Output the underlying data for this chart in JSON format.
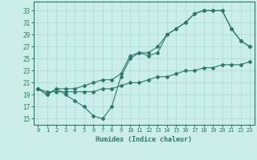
{
  "xlabel": "Humidex (Indice chaleur)",
  "bg_color": "#cceee8",
  "grid_color": "#aadddd",
  "line_color": "#2a7a6a",
  "xlim": [
    -0.5,
    23.5
  ],
  "ylim": [
    14,
    34.5
  ],
  "yticks": [
    15,
    17,
    19,
    21,
    23,
    25,
    27,
    29,
    31,
    33
  ],
  "xticks": [
    0,
    1,
    2,
    3,
    4,
    5,
    6,
    7,
    8,
    9,
    10,
    11,
    12,
    13,
    14,
    15,
    16,
    17,
    18,
    19,
    20,
    21,
    22,
    23
  ],
  "series1_x": [
    0,
    1,
    2,
    3,
    4,
    5,
    6,
    7,
    8,
    9,
    10,
    11,
    12,
    13,
    14,
    15,
    16,
    17,
    18,
    19,
    20,
    21,
    22,
    23
  ],
  "series1_y": [
    20,
    19,
    20,
    19,
    18,
    17,
    15.5,
    15,
    17,
    22,
    25,
    26,
    25.5,
    26,
    29,
    30,
    31,
    32.5,
    33,
    33,
    33,
    30,
    28,
    27
  ],
  "series2_x": [
    0,
    1,
    2,
    3,
    4,
    5,
    6,
    7,
    8,
    9,
    10,
    11,
    12,
    13,
    14,
    15,
    16,
    17,
    18,
    19,
    20,
    21,
    22,
    23
  ],
  "series2_y": [
    20,
    19,
    20,
    20,
    20,
    20.5,
    21,
    21.5,
    21.5,
    22.5,
    25.5,
    26,
    26,
    27,
    29,
    30,
    31,
    32.5,
    33,
    33,
    33,
    30,
    28,
    27
  ],
  "series3_x": [
    0,
    1,
    2,
    3,
    4,
    5,
    6,
    7,
    8,
    9,
    10,
    11,
    12,
    13,
    14,
    15,
    16,
    17,
    18,
    19,
    20,
    21,
    22,
    23
  ],
  "series3_y": [
    20,
    19.5,
    19.5,
    19.5,
    19.5,
    19.5,
    19.5,
    20,
    20,
    20.5,
    21,
    21,
    21.5,
    22,
    22,
    22.5,
    23,
    23,
    23.5,
    23.5,
    24,
    24,
    24,
    24.5
  ],
  "xtick_fontsize": 5.0,
  "ytick_fontsize": 5.5,
  "xlabel_fontsize": 6.0,
  "marker_size": 2.0,
  "line_width": 0.8
}
